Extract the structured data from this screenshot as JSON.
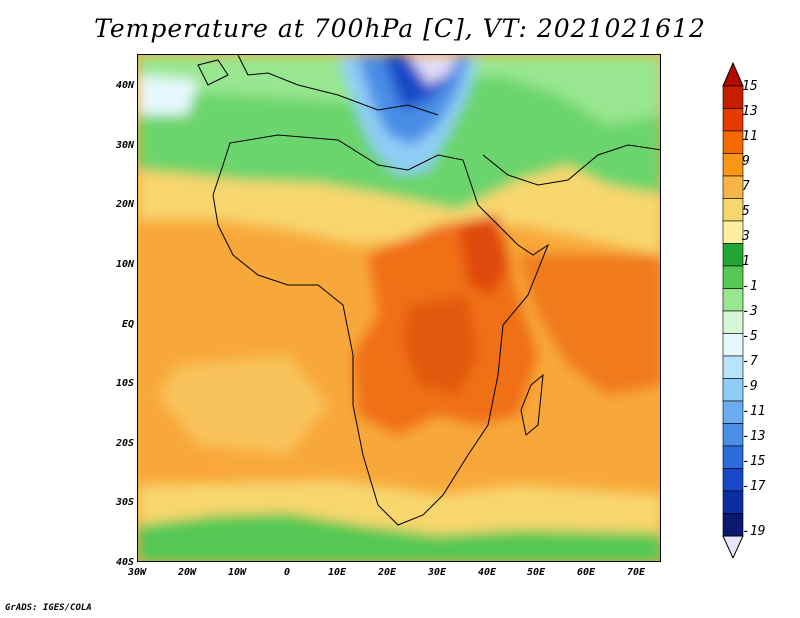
{
  "title": "Temperature at 700hPa [C], VT: 2021021612",
  "credit": "GrADS: IGES/COLA",
  "latitude_labels": [
    "40N",
    "30N",
    "20N",
    "10N",
    "EQ",
    "10S",
    "20S",
    "30S",
    "40S"
  ],
  "longitude_labels": [
    "30W",
    "20W",
    "10W",
    "0",
    "10E",
    "20E",
    "30E",
    "40E",
    "50E",
    "60E",
    "70E"
  ],
  "colorbar": {
    "labels": [
      "15",
      "13",
      "11",
      "9",
      "7",
      "5",
      "3",
      "1",
      "-1",
      "-3",
      "-5",
      "-7",
      "-9",
      "-11",
      "-13",
      "-15",
      "-17",
      "-19"
    ],
    "colors": [
      "#c81e00",
      "#e83a00",
      "#f56a00",
      "#f89616",
      "#f7b548",
      "#f8d66e",
      "#fdeea0",
      "#22a633",
      "#55c855",
      "#98e690",
      "#d6f8d6",
      "#e6f8fc",
      "#b8e4fa",
      "#90cdf6",
      "#6aaef0",
      "#4a8ee6",
      "#2a6cdc",
      "#1848c8",
      "#0c2ea0",
      "#0a1870"
    ],
    "top_arrow_color": "#b40a00",
    "bottom_arrow_color": "#e8e6fc"
  }
}
